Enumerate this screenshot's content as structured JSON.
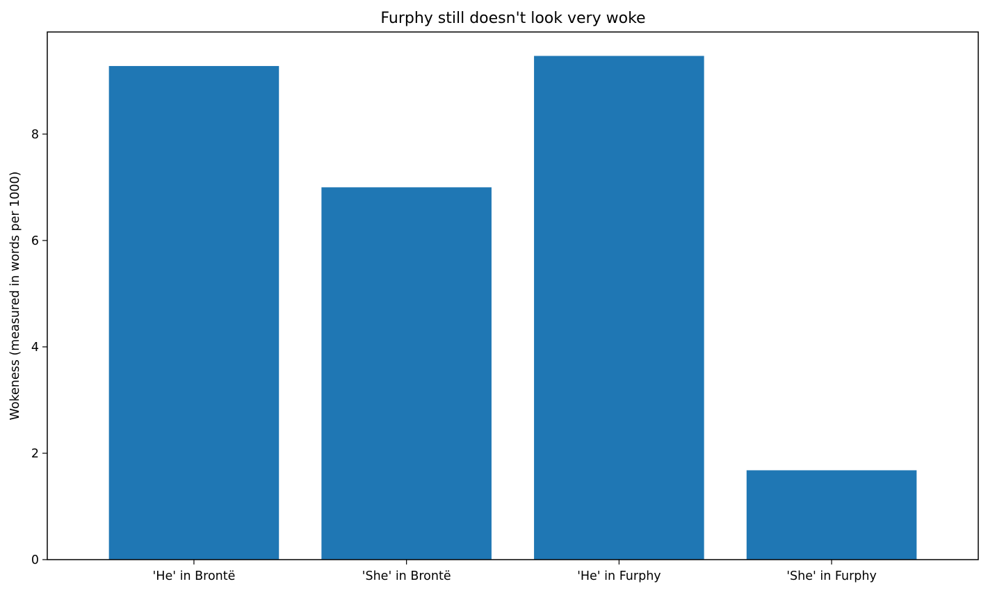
{
  "chart_data": {
    "type": "bar",
    "title": "Furphy still doesn't look very woke",
    "xlabel": "",
    "ylabel": "Wokeness (measured in words per 1000)",
    "categories": [
      "'He' in Brontë",
      "'She' in Brontë",
      "'He' in Furphy",
      "'She' in Furphy"
    ],
    "values": [
      9.28,
      7.0,
      9.47,
      1.68
    ],
    "ylim": [
      0,
      9.92
    ],
    "yticks": [
      0,
      2,
      4,
      6,
      8
    ],
    "ytick_labels": [
      "0",
      "2",
      "4",
      "6",
      "8"
    ],
    "bar_color": "#1f77b4",
    "grid": false,
    "legend": false
  }
}
